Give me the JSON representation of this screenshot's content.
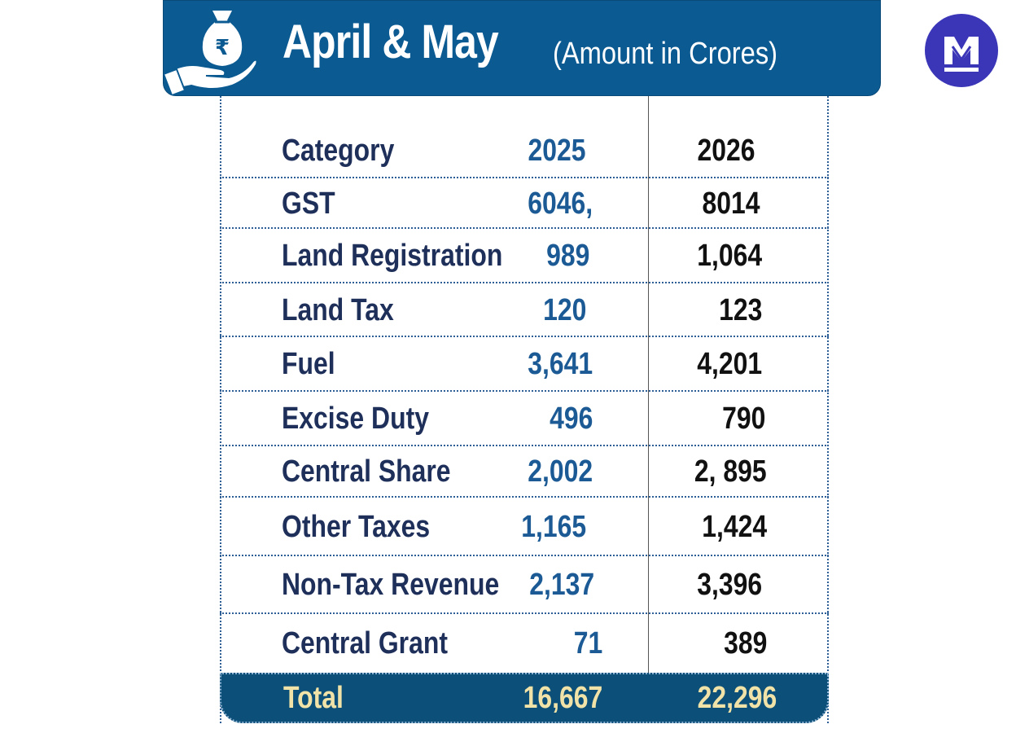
{
  "header": {
    "title": "April & May",
    "subtitle": "(Amount in Crores)",
    "icon": "money-bag-on-hand-icon",
    "currency_symbol": "₹"
  },
  "logo": {
    "icon": "m-logo-icon",
    "color": "#3b36b8"
  },
  "colors": {
    "header_bg": "#0b5a92",
    "category_text": "#1e2f5a",
    "value_2025": "#1b5a94",
    "value_2026": "#111111",
    "total_bg": "#0c4f78",
    "total_text": "#f1e3a8"
  },
  "chart_data": {
    "type": "table",
    "title": "April & May",
    "subtitle": "(Amount in Crores)",
    "columns": [
      "Category",
      "2025",
      "2026"
    ],
    "rows": [
      {
        "category": "GST",
        "y2025": "6046,",
        "y2026": "8014"
      },
      {
        "category": "Land Registration",
        "y2025": "989",
        "y2026": "1,064"
      },
      {
        "category": "Land Tax",
        "y2025": "120",
        "y2026": "123"
      },
      {
        "category": "Fuel",
        "y2025": "3,641",
        "y2026": "4,201"
      },
      {
        "category": "Excise Duty",
        "y2025": "496",
        "y2026": "790"
      },
      {
        "category": "Central Share",
        "y2025": "2,002",
        "y2026": "2, 895"
      },
      {
        "category": "Other Taxes",
        "y2025": "1,165",
        "y2026": "1,424"
      },
      {
        "category": "Non-Tax Revenue",
        "y2025": "2,137",
        "y2026": "3,396"
      },
      {
        "category": "Central Grant",
        "y2025": "71",
        "y2026": "389"
      }
    ],
    "total": {
      "label": "Total",
      "y2025": "16,667",
      "y2026": "22,296"
    }
  }
}
